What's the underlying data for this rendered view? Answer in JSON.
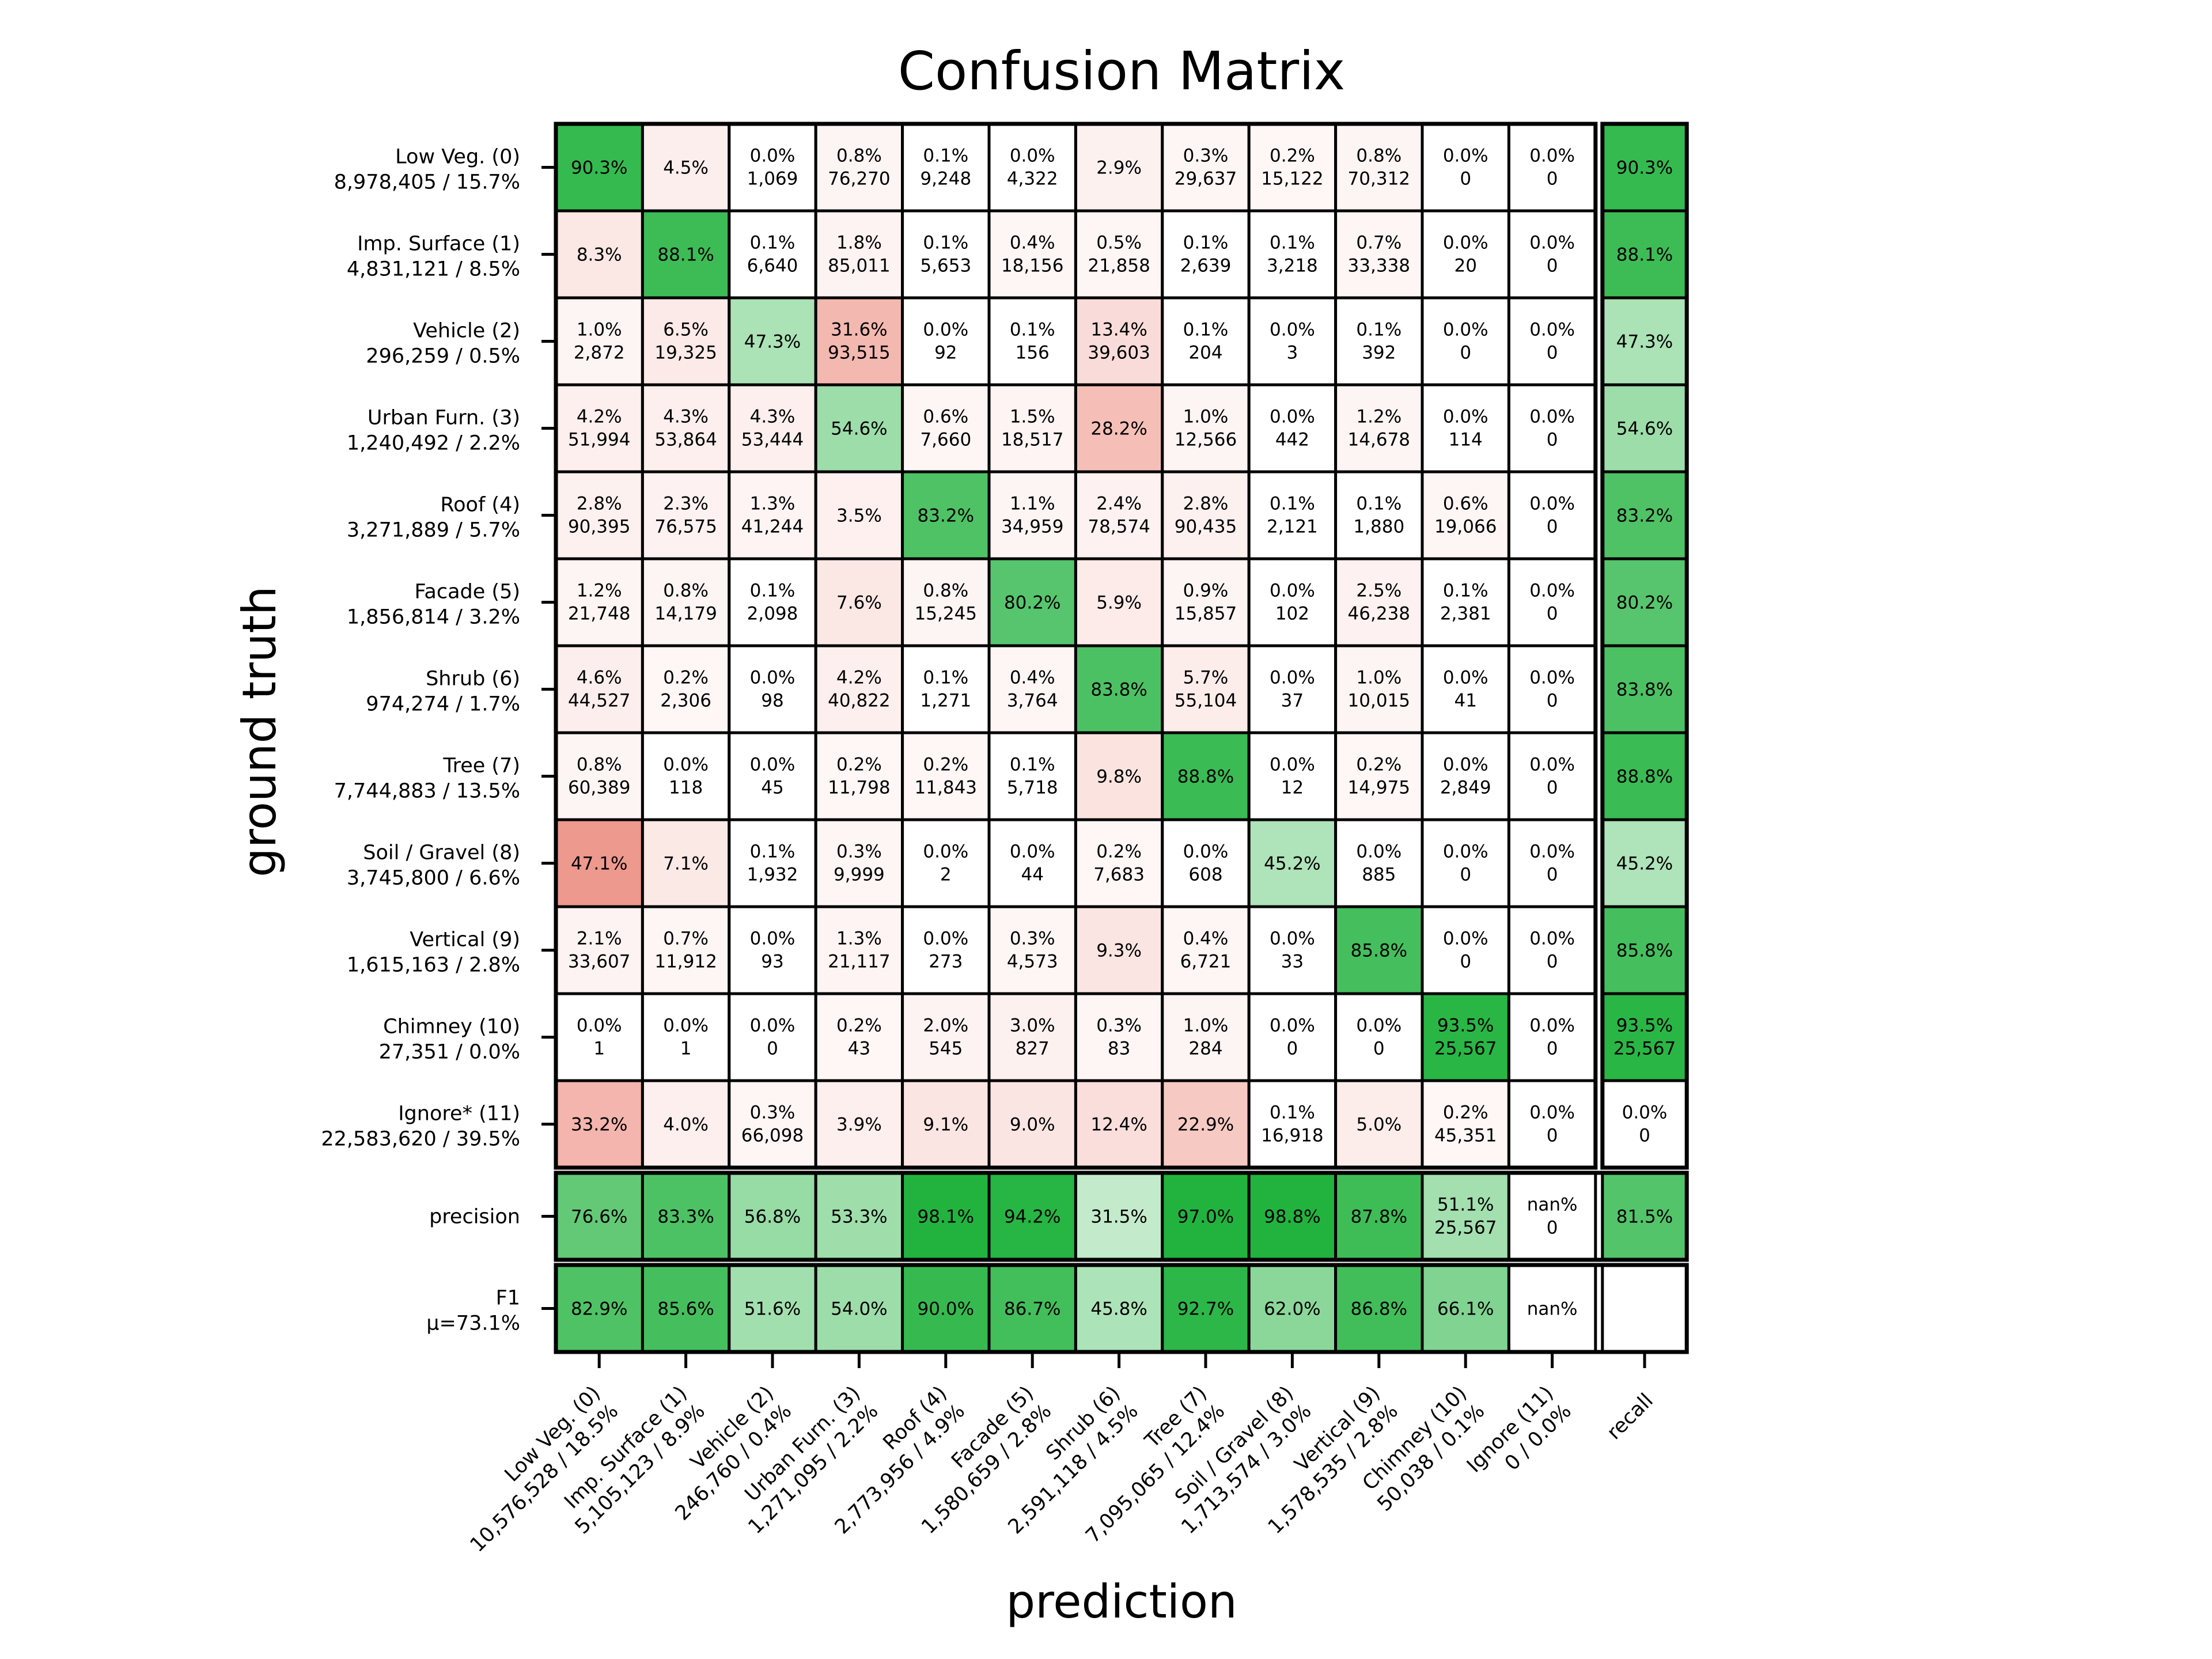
{
  "colors": {
    "good": "#22b33f",
    "bad": "#e5604e",
    "grid": "#000000",
    "background": "#ffffff"
  },
  "chart_data": {
    "type": "heatmap",
    "title": "Confusion Matrix",
    "xlabel": "prediction",
    "ylabel": "ground truth",
    "row_labels": [
      [
        "Low Veg.  (0)",
        "8,978,405 / 15.7%"
      ],
      [
        "Imp. Surface  (1)",
        "4,831,121 / 8.5%"
      ],
      [
        "Vehicle  (2)",
        "296,259 / 0.5%"
      ],
      [
        "Urban Furn.  (3)",
        "1,240,492 / 2.2%"
      ],
      [
        "Roof  (4)",
        "3,271,889 / 5.7%"
      ],
      [
        "Facade  (5)",
        "1,856,814 / 3.2%"
      ],
      [
        "Shrub  (6)",
        "974,274 / 1.7%"
      ],
      [
        "Tree  (7)",
        "7,744,883 / 13.5%"
      ],
      [
        "Soil / Gravel  (8)",
        "3,745,800 / 6.6%"
      ],
      [
        "Vertical  (9)",
        "1,615,163 / 2.8%"
      ],
      [
        "Chimney  (10)",
        "27,351 / 0.0%"
      ],
      [
        "Ignore*  (11)",
        "22,583,620 / 39.5%"
      ]
    ],
    "col_labels": [
      [
        "Low Veg.  (0)",
        "10,576,528 / 18.5%"
      ],
      [
        "Imp. Surface  (1)",
        "5,105,123 / 8.9%"
      ],
      [
        "Vehicle  (2)",
        "246,760 / 0.4%"
      ],
      [
        "Urban Furn.  (3)",
        "1,271,095 / 2.2%"
      ],
      [
        "Roof  (4)",
        "2,773,956 / 4.9%"
      ],
      [
        "Facade  (5)",
        "1,580,659 / 2.8%"
      ],
      [
        "Shrub  (6)",
        "2,591,118 / 4.5%"
      ],
      [
        "Tree  (7)",
        "7,095,065 / 12.4%"
      ],
      [
        "Soil / Gravel  (8)",
        "1,713,574 / 3.0%"
      ],
      [
        "Vertical  (9)",
        "1,578,535 / 2.8%"
      ],
      [
        "Chimney  (10)",
        "50,038 / 0.1%"
      ],
      [
        "Ignore  (11)",
        "0 / 0.0%"
      ]
    ],
    "recall_label": "recall",
    "precision_label": "precision",
    "f1_label": "F1",
    "f1_mean_label": "μ=73.1%",
    "matrix": [
      [
        [
          "90.3%",
          ""
        ],
        [
          "4.5%",
          ""
        ],
        [
          "0.0%",
          "1,069"
        ],
        [
          "0.8%",
          "76,270"
        ],
        [
          "0.1%",
          "9,248"
        ],
        [
          "0.0%",
          "4,322"
        ],
        [
          "2.9%",
          ""
        ],
        [
          "0.3%",
          "29,637"
        ],
        [
          "0.2%",
          "15,122"
        ],
        [
          "0.8%",
          "70,312"
        ],
        [
          "0.0%",
          "0"
        ],
        [
          "0.0%",
          "0"
        ]
      ],
      [
        [
          "8.3%",
          ""
        ],
        [
          "88.1%",
          ""
        ],
        [
          "0.1%",
          "6,640"
        ],
        [
          "1.8%",
          "85,011"
        ],
        [
          "0.1%",
          "5,653"
        ],
        [
          "0.4%",
          "18,156"
        ],
        [
          "0.5%",
          "21,858"
        ],
        [
          "0.1%",
          "2,639"
        ],
        [
          "0.1%",
          "3,218"
        ],
        [
          "0.7%",
          "33,338"
        ],
        [
          "0.0%",
          "20"
        ],
        [
          "0.0%",
          "0"
        ]
      ],
      [
        [
          "1.0%",
          "2,872"
        ],
        [
          "6.5%",
          "19,325"
        ],
        [
          "47.3%",
          ""
        ],
        [
          "31.6%",
          "93,515"
        ],
        [
          "0.0%",
          "92"
        ],
        [
          "0.1%",
          "156"
        ],
        [
          "13.4%",
          "39,603"
        ],
        [
          "0.1%",
          "204"
        ],
        [
          "0.0%",
          "3"
        ],
        [
          "0.1%",
          "392"
        ],
        [
          "0.0%",
          "0"
        ],
        [
          "0.0%",
          "0"
        ]
      ],
      [
        [
          "4.2%",
          "51,994"
        ],
        [
          "4.3%",
          "53,864"
        ],
        [
          "4.3%",
          "53,444"
        ],
        [
          "54.6%",
          ""
        ],
        [
          "0.6%",
          "7,660"
        ],
        [
          "1.5%",
          "18,517"
        ],
        [
          "28.2%",
          ""
        ],
        [
          "1.0%",
          "12,566"
        ],
        [
          "0.0%",
          "442"
        ],
        [
          "1.2%",
          "14,678"
        ],
        [
          "0.0%",
          "114"
        ],
        [
          "0.0%",
          "0"
        ]
      ],
      [
        [
          "2.8%",
          "90,395"
        ],
        [
          "2.3%",
          "76,575"
        ],
        [
          "1.3%",
          "41,244"
        ],
        [
          "3.5%",
          ""
        ],
        [
          "83.2%",
          ""
        ],
        [
          "1.1%",
          "34,959"
        ],
        [
          "2.4%",
          "78,574"
        ],
        [
          "2.8%",
          "90,435"
        ],
        [
          "0.1%",
          "2,121"
        ],
        [
          "0.1%",
          "1,880"
        ],
        [
          "0.6%",
          "19,066"
        ],
        [
          "0.0%",
          "0"
        ]
      ],
      [
        [
          "1.2%",
          "21,748"
        ],
        [
          "0.8%",
          "14,179"
        ],
        [
          "0.1%",
          "2,098"
        ],
        [
          "7.6%",
          ""
        ],
        [
          "0.8%",
          "15,245"
        ],
        [
          "80.2%",
          ""
        ],
        [
          "5.9%",
          ""
        ],
        [
          "0.9%",
          "15,857"
        ],
        [
          "0.0%",
          "102"
        ],
        [
          "2.5%",
          "46,238"
        ],
        [
          "0.1%",
          "2,381"
        ],
        [
          "0.0%",
          "0"
        ]
      ],
      [
        [
          "4.6%",
          "44,527"
        ],
        [
          "0.2%",
          "2,306"
        ],
        [
          "0.0%",
          "98"
        ],
        [
          "4.2%",
          "40,822"
        ],
        [
          "0.1%",
          "1,271"
        ],
        [
          "0.4%",
          "3,764"
        ],
        [
          "83.8%",
          ""
        ],
        [
          "5.7%",
          "55,104"
        ],
        [
          "0.0%",
          "37"
        ],
        [
          "1.0%",
          "10,015"
        ],
        [
          "0.0%",
          "41"
        ],
        [
          "0.0%",
          "0"
        ]
      ],
      [
        [
          "0.8%",
          "60,389"
        ],
        [
          "0.0%",
          "118"
        ],
        [
          "0.0%",
          "45"
        ],
        [
          "0.2%",
          "11,798"
        ],
        [
          "0.2%",
          "11,843"
        ],
        [
          "0.1%",
          "5,718"
        ],
        [
          "9.8%",
          ""
        ],
        [
          "88.8%",
          ""
        ],
        [
          "0.0%",
          "12"
        ],
        [
          "0.2%",
          "14,975"
        ],
        [
          "0.0%",
          "2,849"
        ],
        [
          "0.0%",
          "0"
        ]
      ],
      [
        [
          "47.1%",
          ""
        ],
        [
          "7.1%",
          ""
        ],
        [
          "0.1%",
          "1,932"
        ],
        [
          "0.3%",
          "9,999"
        ],
        [
          "0.0%",
          "2"
        ],
        [
          "0.0%",
          "44"
        ],
        [
          "0.2%",
          "7,683"
        ],
        [
          "0.0%",
          "608"
        ],
        [
          "45.2%",
          ""
        ],
        [
          "0.0%",
          "885"
        ],
        [
          "0.0%",
          "0"
        ],
        [
          "0.0%",
          "0"
        ]
      ],
      [
        [
          "2.1%",
          "33,607"
        ],
        [
          "0.7%",
          "11,912"
        ],
        [
          "0.0%",
          "93"
        ],
        [
          "1.3%",
          "21,117"
        ],
        [
          "0.0%",
          "273"
        ],
        [
          "0.3%",
          "4,573"
        ],
        [
          "9.3%",
          ""
        ],
        [
          "0.4%",
          "6,721"
        ],
        [
          "0.0%",
          "33"
        ],
        [
          "85.8%",
          ""
        ],
        [
          "0.0%",
          "0"
        ],
        [
          "0.0%",
          "0"
        ]
      ],
      [
        [
          "0.0%",
          "1"
        ],
        [
          "0.0%",
          "1"
        ],
        [
          "0.0%",
          "0"
        ],
        [
          "0.2%",
          "43"
        ],
        [
          "2.0%",
          "545"
        ],
        [
          "3.0%",
          "827"
        ],
        [
          "0.3%",
          "83"
        ],
        [
          "1.0%",
          "284"
        ],
        [
          "0.0%",
          "0"
        ],
        [
          "0.0%",
          "0"
        ],
        [
          "93.5%",
          "25,567"
        ],
        [
          "0.0%",
          "0"
        ]
      ],
      [
        [
          "33.2%",
          ""
        ],
        [
          "4.0%",
          ""
        ],
        [
          "0.3%",
          "66,098"
        ],
        [
          "3.9%",
          ""
        ],
        [
          "9.1%",
          ""
        ],
        [
          "9.0%",
          ""
        ],
        [
          "12.4%",
          ""
        ],
        [
          "22.9%",
          ""
        ],
        [
          "0.1%",
          "16,918"
        ],
        [
          "5.0%",
          ""
        ],
        [
          "0.2%",
          "45,351"
        ],
        [
          "0.0%",
          "0"
        ]
      ]
    ],
    "recall": [
      [
        "90.3%",
        ""
      ],
      [
        "88.1%",
        ""
      ],
      [
        "47.3%",
        ""
      ],
      [
        "54.6%",
        ""
      ],
      [
        "83.2%",
        ""
      ],
      [
        "80.2%",
        ""
      ],
      [
        "83.8%",
        ""
      ],
      [
        "88.8%",
        ""
      ],
      [
        "45.2%",
        ""
      ],
      [
        "85.8%",
        ""
      ],
      [
        "93.5%",
        "25,567"
      ],
      [
        "0.0%",
        "0"
      ]
    ],
    "precision": [
      [
        "76.6%",
        ""
      ],
      [
        "83.3%",
        ""
      ],
      [
        "56.8%",
        ""
      ],
      [
        "53.3%",
        ""
      ],
      [
        "98.1%",
        ""
      ],
      [
        "94.2%",
        ""
      ],
      [
        "31.5%",
        ""
      ],
      [
        "97.0%",
        ""
      ],
      [
        "98.8%",
        ""
      ],
      [
        "87.8%",
        ""
      ],
      [
        "51.1%",
        "25,567"
      ],
      [
        "nan%",
        "0"
      ]
    ],
    "precision_total": [
      "81.5%",
      ""
    ],
    "f1": [
      [
        "82.9%",
        ""
      ],
      [
        "85.6%",
        ""
      ],
      [
        "51.6%",
        ""
      ],
      [
        "54.0%",
        ""
      ],
      [
        "90.0%",
        ""
      ],
      [
        "86.7%",
        ""
      ],
      [
        "45.8%",
        ""
      ],
      [
        "92.7%",
        ""
      ],
      [
        "62.0%",
        ""
      ],
      [
        "86.8%",
        ""
      ],
      [
        "66.1%",
        ""
      ],
      [
        "nan%",
        ""
      ]
    ],
    "grid": true,
    "legend": "none"
  }
}
